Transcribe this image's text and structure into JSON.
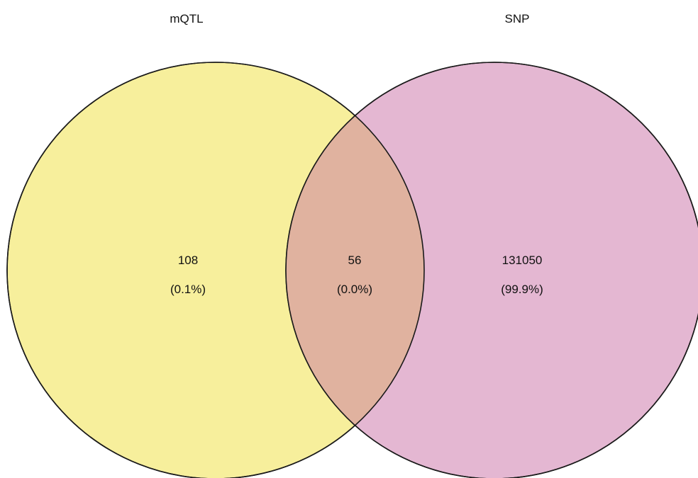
{
  "sets": [
    {
      "id": "left",
      "label": "mQTL",
      "color": "#f7ef9c"
    },
    {
      "id": "right",
      "label": "SNP",
      "color": "#e4b7d2"
    }
  ],
  "intersection_color": "#e0b29f",
  "outline_color": "#1a1a1a",
  "regions": {
    "left_only": {
      "count": "108",
      "percent": "(0.1%)"
    },
    "intersection": {
      "count": "56",
      "percent": "(0.0%)"
    },
    "right_only": {
      "count": "131050",
      "percent": "(99.9%)"
    }
  },
  "chart_data": {
    "type": "venn",
    "sets": [
      "mQTL",
      "SNP"
    ],
    "values": {
      "mQTL_only": 108,
      "mQTL_and_SNP": 56,
      "SNP_only": 131050
    },
    "percentages": {
      "mQTL_only": 0.1,
      "mQTL_and_SNP": 0.0,
      "SNP_only": 99.9
    }
  }
}
